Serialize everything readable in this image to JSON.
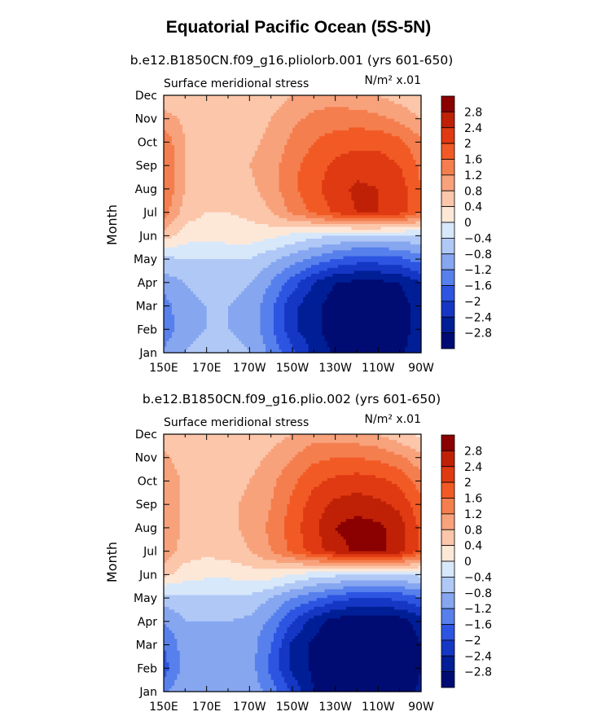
{
  "figure_title": "Equatorial Pacific Ocean (5S-5N)",
  "chart_data": [
    {
      "type": "heatmap",
      "title": "b.e12.B1850CN.f09_g16.pliolorb.001 (yrs 601-650)",
      "left_label": "Surface meridional stress",
      "units_label": "N/m² x.01",
      "xlabel": "",
      "ylabel": "Month",
      "x_ticks": [
        "150E",
        "170E",
        "170W",
        "150W",
        "130W",
        "110W",
        "90W"
      ],
      "xlim": [
        150,
        270
      ],
      "y_ticks": [
        "Jan",
        "Feb",
        "Mar",
        "Apr",
        "May",
        "Jun",
        "Jul",
        "Aug",
        "Sep",
        "Oct",
        "Nov",
        "Dec"
      ],
      "colorbar_labels": [
        "2.8",
        "2.4",
        "2",
        "1.6",
        "1.2",
        "0.8",
        "0.4",
        "0",
        "-0.4",
        "-0.8",
        "-1.2",
        "-1.6",
        "-2",
        "-2.4",
        "-2.8"
      ],
      "colorbar_colors": [
        "#8b0000",
        "#bf2106",
        "#df3a12",
        "#f25a25",
        "#f47e4e",
        "#f8a27c",
        "#fbc6aa",
        "#fde8d8",
        "#d8e8fb",
        "#b0c8f6",
        "#86a6f0",
        "#5780ec",
        "#2d55e2",
        "#1537c4",
        "#001e96",
        "#000c73"
      ],
      "grid": false,
      "lon": [
        150,
        160,
        170,
        180,
        190,
        200,
        210,
        220,
        230,
        240,
        250,
        260,
        270
      ],
      "values": [
        [
          -1.1,
          -0.8,
          -0.7,
          -0.7,
          -0.8,
          -1.3,
          -1.9,
          -2.5,
          -2.9,
          -3.0,
          -3.0,
          -2.9,
          -2.5
        ],
        [
          -1.5,
          -0.9,
          -0.8,
          -0.8,
          -0.9,
          -1.5,
          -2.3,
          -2.7,
          -3.0,
          -3.1,
          -3.1,
          -3.0,
          -2.6
        ],
        [
          -1.4,
          -0.9,
          -0.8,
          -0.8,
          -0.9,
          -1.5,
          -2.3,
          -2.7,
          -3.0,
          -3.1,
          -3.1,
          -3.0,
          -2.6
        ],
        [
          -1.0,
          -0.8,
          -0.7,
          -0.7,
          -0.8,
          -1.2,
          -1.8,
          -2.4,
          -2.8,
          -2.9,
          -2.9,
          -2.8,
          -2.4
        ],
        [
          -0.5,
          -0.4,
          -0.4,
          -0.4,
          -0.4,
          -0.7,
          -1.0,
          -1.3,
          -1.6,
          -1.8,
          -1.8,
          -1.7,
          -1.4
        ],
        [
          0.6,
          0.2,
          0.1,
          0.2,
          0.2,
          0.1,
          -0.1,
          -0.3,
          -0.4,
          -0.5,
          -0.5,
          -0.5,
          -0.4
        ],
        [
          1.4,
          0.6,
          0.4,
          0.4,
          0.5,
          0.8,
          1.3,
          1.7,
          2.1,
          2.4,
          2.4,
          2.2,
          1.6
        ],
        [
          1.6,
          0.8,
          0.6,
          0.6,
          0.7,
          1.0,
          1.5,
          1.9,
          2.2,
          2.5,
          2.4,
          2.2,
          1.6
        ],
        [
          1.6,
          0.8,
          0.6,
          0.6,
          0.8,
          1.0,
          1.5,
          1.8,
          2.1,
          2.2,
          2.2,
          2.0,
          1.5
        ],
        [
          1.5,
          0.8,
          0.6,
          0.6,
          0.7,
          0.9,
          1.3,
          1.6,
          1.8,
          1.9,
          1.9,
          1.7,
          1.3
        ],
        [
          1.0,
          0.7,
          0.6,
          0.6,
          0.6,
          0.8,
          1.1,
          1.3,
          1.4,
          1.4,
          1.3,
          1.1,
          0.8
        ],
        [
          0.5,
          0.4,
          0.4,
          0.4,
          0.4,
          0.6,
          0.8,
          1.0,
          1.0,
          0.9,
          0.8,
          0.6,
          0.4
        ]
      ]
    },
    {
      "type": "heatmap",
      "title": "b.e12.B1850CN.f09_g16.plio.002 (yrs 601-650)",
      "left_label": "Surface meridional stress",
      "units_label": "N/m² x.01",
      "xlabel": "",
      "ylabel": "Month",
      "x_ticks": [
        "150E",
        "170E",
        "170W",
        "150W",
        "130W",
        "110W",
        "90W"
      ],
      "xlim": [
        150,
        270
      ],
      "y_ticks": [
        "Jan",
        "Feb",
        "Mar",
        "Apr",
        "May",
        "Jun",
        "Jul",
        "Aug",
        "Sep",
        "Oct",
        "Nov",
        "Dec"
      ],
      "colorbar_labels": [
        "2.8",
        "2.4",
        "2",
        "1.6",
        "1.2",
        "0.8",
        "0.4",
        "0",
        "-0.4",
        "-0.8",
        "-1.2",
        "-1.6",
        "-2",
        "-2.4",
        "-2.8"
      ],
      "colorbar_colors": [
        "#8b0000",
        "#bf2106",
        "#df3a12",
        "#f25a25",
        "#f47e4e",
        "#f8a27c",
        "#fbc6aa",
        "#fde8d8",
        "#d8e8fb",
        "#b0c8f6",
        "#86a6f0",
        "#5780ec",
        "#2d55e2",
        "#1537c4",
        "#001e96",
        "#000c73"
      ],
      "grid": false,
      "lon": [
        150,
        160,
        170,
        180,
        190,
        200,
        210,
        220,
        230,
        240,
        250,
        260,
        270
      ],
      "values": [
        [
          -1.3,
          -0.9,
          -0.8,
          -0.8,
          -0.9,
          -1.4,
          -2.1,
          -2.8,
          -3.1,
          -3.2,
          -3.2,
          -3.1,
          -2.7
        ],
        [
          -1.8,
          -1.0,
          -0.9,
          -0.9,
          -1.0,
          -1.7,
          -2.5,
          -2.9,
          -3.2,
          -3.3,
          -3.3,
          -3.2,
          -2.8
        ],
        [
          -1.6,
          -1.0,
          -0.9,
          -0.9,
          -1.0,
          -1.6,
          -2.5,
          -2.9,
          -3.2,
          -3.3,
          -3.3,
          -3.2,
          -2.8
        ],
        [
          -1.2,
          -0.8,
          -0.8,
          -0.8,
          -0.9,
          -1.3,
          -2.0,
          -2.6,
          -3.0,
          -3.1,
          -3.1,
          -3.0,
          -2.6
        ],
        [
          -0.6,
          -0.5,
          -0.5,
          -0.5,
          -0.5,
          -0.8,
          -1.2,
          -1.5,
          -1.8,
          -2.0,
          -2.0,
          -1.9,
          -1.6
        ],
        [
          0.5,
          0.2,
          0.1,
          0.1,
          0.2,
          0.2,
          0.0,
          -0.2,
          -0.3,
          -0.4,
          -0.4,
          -0.4,
          -0.3
        ],
        [
          1.1,
          0.6,
          0.5,
          0.6,
          0.8,
          1.2,
          1.7,
          2.2,
          2.6,
          2.9,
          2.9,
          2.6,
          1.9
        ],
        [
          1.2,
          0.7,
          0.6,
          0.7,
          0.9,
          1.3,
          1.8,
          2.3,
          2.8,
          3.0,
          2.9,
          2.6,
          1.9
        ],
        [
          1.2,
          0.7,
          0.6,
          0.7,
          0.9,
          1.2,
          1.7,
          2.2,
          2.5,
          2.6,
          2.5,
          2.3,
          1.7
        ],
        [
          1.1,
          0.7,
          0.6,
          0.6,
          0.8,
          1.1,
          1.5,
          1.9,
          2.1,
          2.2,
          2.1,
          1.9,
          1.4
        ],
        [
          0.9,
          0.6,
          0.5,
          0.5,
          0.6,
          0.9,
          1.2,
          1.5,
          1.6,
          1.6,
          1.5,
          1.3,
          0.9
        ],
        [
          0.5,
          0.4,
          0.4,
          0.4,
          0.4,
          0.6,
          0.8,
          1.0,
          1.0,
          0.9,
          0.8,
          0.5,
          0.3
        ]
      ]
    }
  ]
}
